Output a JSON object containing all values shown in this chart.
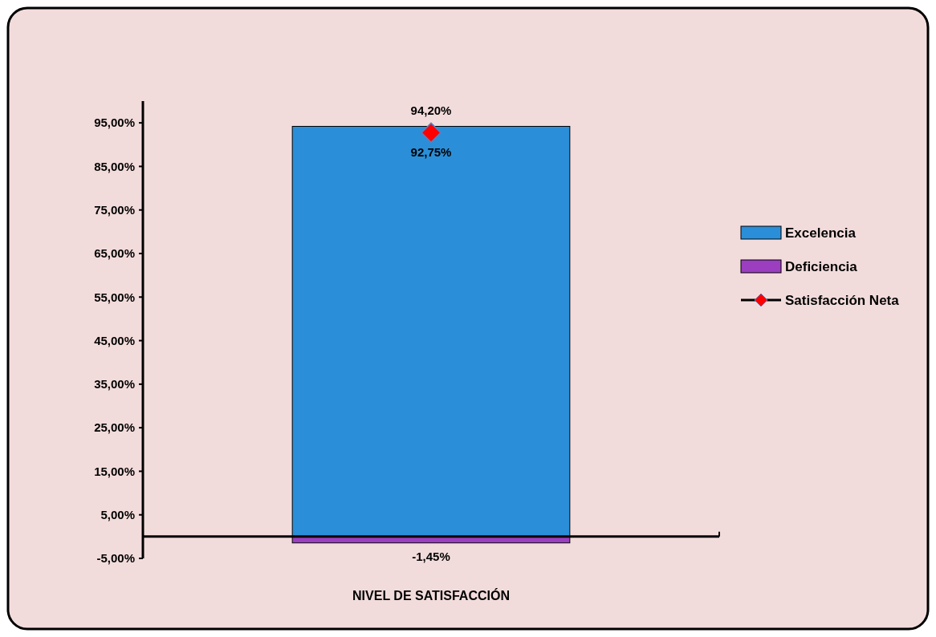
{
  "chart_data": {
    "type": "bar",
    "categories": [
      "NIVEL DE SATISFACCIÓN"
    ],
    "series": [
      {
        "name": "Excelencia",
        "color": "#2a8fd8",
        "values": [
          94.2
        ],
        "value_labels": [
          "94,20%"
        ]
      },
      {
        "name": "Deficiencia",
        "color": "#9b3fc0",
        "values": [
          -1.45
        ],
        "value_labels": [
          "-1,45%"
        ]
      },
      {
        "name": "Satisfacción Neta",
        "type": "line",
        "color": "#ff0000",
        "marker": "diamond",
        "values": [
          92.75
        ],
        "value_labels": [
          "92,75%"
        ]
      }
    ],
    "ylim": [
      -5,
      100
    ],
    "yticks": [
      {
        "value": -5,
        "label": "-5,00%"
      },
      {
        "value": 5,
        "label": "5,00%"
      },
      {
        "value": 15,
        "label": "15,00%"
      },
      {
        "value": 25,
        "label": "25,00%"
      },
      {
        "value": 35,
        "label": "35,00%"
      },
      {
        "value": 45,
        "label": "45,00%"
      },
      {
        "value": 55,
        "label": "55,00%"
      },
      {
        "value": 65,
        "label": "65,00%"
      },
      {
        "value": 75,
        "label": "75,00%"
      },
      {
        "value": 85,
        "label": "85,00%"
      },
      {
        "value": 95,
        "label": "95,00%"
      }
    ],
    "stacked": true,
    "legend": "right",
    "grid": false
  }
}
